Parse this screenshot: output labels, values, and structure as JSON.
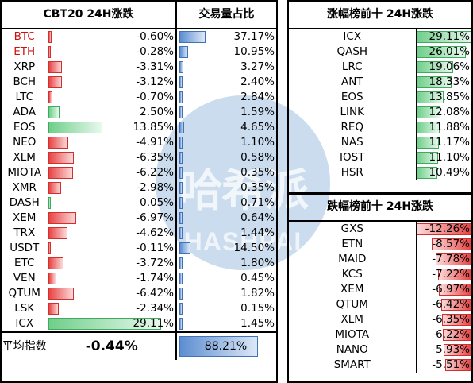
{
  "watermark": {
    "cn": "哈希派",
    "en": "HASHPAI"
  },
  "left": {
    "title": "CBT20 24H涨跌",
    "share_title": "交易量占比",
    "rows": [
      {
        "name": "BTC",
        "change": "-0.60%",
        "chg": -0.6,
        "share": "37.17%",
        "sv": 37.17,
        "red": true
      },
      {
        "name": "ETH",
        "change": "-0.28%",
        "chg": -0.28,
        "share": "10.95%",
        "sv": 10.95,
        "red": true
      },
      {
        "name": "XRP",
        "change": "-3.31%",
        "chg": -3.31,
        "share": "3.27%",
        "sv": 3.27
      },
      {
        "name": "BCH",
        "change": "-3.12%",
        "chg": -3.12,
        "share": "2.40%",
        "sv": 2.4
      },
      {
        "name": "LTC",
        "change": "-0.70%",
        "chg": -0.7,
        "share": "2.84%",
        "sv": 2.84
      },
      {
        "name": "ADA",
        "change": "2.50%",
        "chg": 2.5,
        "share": "1.59%",
        "sv": 1.59
      },
      {
        "name": "EOS",
        "change": "13.85%",
        "chg": 13.85,
        "share": "4.65%",
        "sv": 4.65
      },
      {
        "name": "NEO",
        "change": "-4.91%",
        "chg": -4.91,
        "share": "1.10%",
        "sv": 1.1
      },
      {
        "name": "XLM",
        "change": "-6.35%",
        "chg": -6.35,
        "share": "0.58%",
        "sv": 0.58
      },
      {
        "name": "MIOTA",
        "change": "-6.22%",
        "chg": -6.22,
        "share": "0.35%",
        "sv": 0.35
      },
      {
        "name": "XMR",
        "change": "-2.98%",
        "chg": -2.98,
        "share": "0.35%",
        "sv": 0.35
      },
      {
        "name": "DASH",
        "change": "0.05%",
        "chg": 0.05,
        "share": "0.71%",
        "sv": 0.71
      },
      {
        "name": "XEM",
        "change": "-6.97%",
        "chg": -6.97,
        "share": "0.64%",
        "sv": 0.64
      },
      {
        "name": "TRX",
        "change": "-4.62%",
        "chg": -4.62,
        "share": "1.44%",
        "sv": 1.44
      },
      {
        "name": "USDT",
        "change": "-0.11%",
        "chg": -0.11,
        "share": "14.50%",
        "sv": 14.5
      },
      {
        "name": "ETC",
        "change": "-3.72%",
        "chg": -3.72,
        "share": "1.80%",
        "sv": 1.8
      },
      {
        "name": "VEN",
        "change": "-1.74%",
        "chg": -1.74,
        "share": "0.45%",
        "sv": 0.45
      },
      {
        "name": "QTUM",
        "change": "-6.42%",
        "chg": -6.42,
        "share": "1.82%",
        "sv": 1.82
      },
      {
        "name": "LSK",
        "change": "-2.34%",
        "chg": -2.34,
        "share": "0.15%",
        "sv": 0.15
      },
      {
        "name": "ICX",
        "change": "29.11%",
        "chg": 29.11,
        "share": "1.45%",
        "sv": 1.45
      }
    ],
    "avg_label": "平均指数",
    "avg_change": "-0.44%",
    "avg_share": "88.21%",
    "avg_share_value": 88.21
  },
  "gainers": {
    "title": "涨幅榜前十 24H涨跌",
    "rows": [
      {
        "name": "ICX",
        "change": "29.11%",
        "v": 29.11
      },
      {
        "name": "QASH",
        "change": "26.01%",
        "v": 26.01
      },
      {
        "name": "LRC",
        "change": "19.06%",
        "v": 19.06
      },
      {
        "name": "ANT",
        "change": "18.33%",
        "v": 18.33
      },
      {
        "name": "EOS",
        "change": "13.85%",
        "v": 13.85
      },
      {
        "name": "LINK",
        "change": "12.08%",
        "v": 12.08
      },
      {
        "name": "REQ",
        "change": "11.88%",
        "v": 11.88
      },
      {
        "name": "NAS",
        "change": "11.17%",
        "v": 11.17
      },
      {
        "name": "IOST",
        "change": "11.10%",
        "v": 11.1
      },
      {
        "name": "HSR",
        "change": "10.49%",
        "v": 10.49
      }
    ]
  },
  "losers": {
    "title": "跌幅榜前十 24H涨跌",
    "rows": [
      {
        "name": "GXS",
        "change": "-12.26%",
        "v": -12.26
      },
      {
        "name": "ETN",
        "change": "-8.57%",
        "v": -8.57
      },
      {
        "name": "MAID",
        "change": "-7.78%",
        "v": -7.78
      },
      {
        "name": "KCS",
        "change": "-7.22%",
        "v": -7.22
      },
      {
        "name": "XEM",
        "change": "-6.97%",
        "v": -6.97
      },
      {
        "name": "QTUM",
        "change": "-6.42%",
        "v": -6.42
      },
      {
        "name": "XLM",
        "change": "-6.35%",
        "v": -6.35
      },
      {
        "name": "MIOTA",
        "change": "-6.22%",
        "v": -6.22
      },
      {
        "name": "NANO",
        "change": "-5.93%",
        "v": -5.93
      },
      {
        "name": "SMART",
        "change": "-5.51%",
        "v": -5.51
      }
    ]
  },
  "colors": {
    "up": "#3daa5c",
    "down": "#d32f2f",
    "share": "#3f72b7",
    "highlight_name": "#cc1111"
  }
}
